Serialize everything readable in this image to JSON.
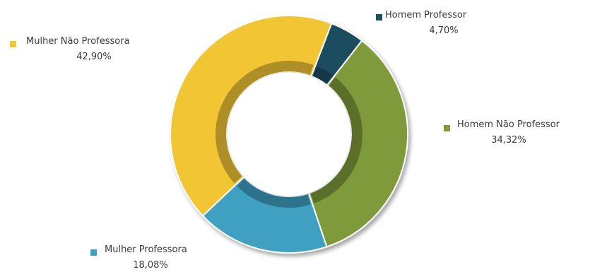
{
  "chart_data": {
    "type": "pie",
    "variant": "donut",
    "categories": [
      "Homem Professor",
      "Homem Não Professor",
      "Mulher Professora",
      "Mulher Não Professora"
    ],
    "values": [
      4.7,
      34.32,
      18.08,
      42.9
    ],
    "value_labels": [
      "4,70%",
      "34,32%",
      "18,08%",
      "42,90%"
    ],
    "colors": [
      "#1f4e5e",
      "#7f9a3a",
      "#3fa0c2",
      "#f2c535"
    ],
    "legend_placement": "around the donut, next to each slice"
  }
}
